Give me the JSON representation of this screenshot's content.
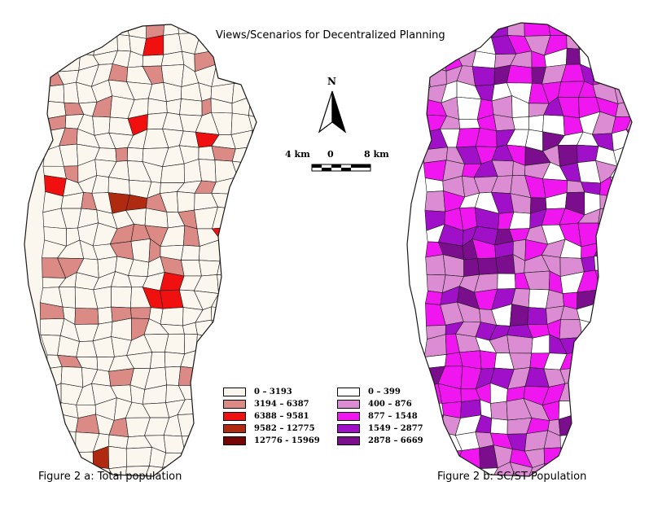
{
  "title": "Views/Scenarios for Decentralized Planning",
  "north_label": "N",
  "scale": {
    "left": "4 km",
    "zero": "0",
    "right": "8 km"
  },
  "figure_a": {
    "caption": "Figure 2 a: Total population",
    "legend": [
      {
        "label": "0 – 3193",
        "color": "#fbf6ee"
      },
      {
        "label": "3194 – 6387",
        "color": "#dc8a86"
      },
      {
        "label": "6388 – 9581",
        "color": "#f01010"
      },
      {
        "label": "9582 – 12775",
        "color": "#b02a10"
      },
      {
        "label": "12776 - 15969",
        "color": "#760606"
      }
    ]
  },
  "figure_b": {
    "caption": "Figure 2 b: SC/ST Population",
    "legend": [
      {
        "label": "0 – 399",
        "color": "#ffffff"
      },
      {
        "label": "400 – 876",
        "color": "#dc8cd2"
      },
      {
        "label": "877 – 1548",
        "color": "#f016f0"
      },
      {
        "label": "1549 – 2877",
        "color": "#a010c8"
      },
      {
        "label": "2878 – 6669",
        "color": "#7a0e8c"
      }
    ]
  },
  "colors": {
    "outline": "#1a1a1a",
    "map_a_base": "#fbf6ee",
    "map_b_base": "#ffffff"
  }
}
